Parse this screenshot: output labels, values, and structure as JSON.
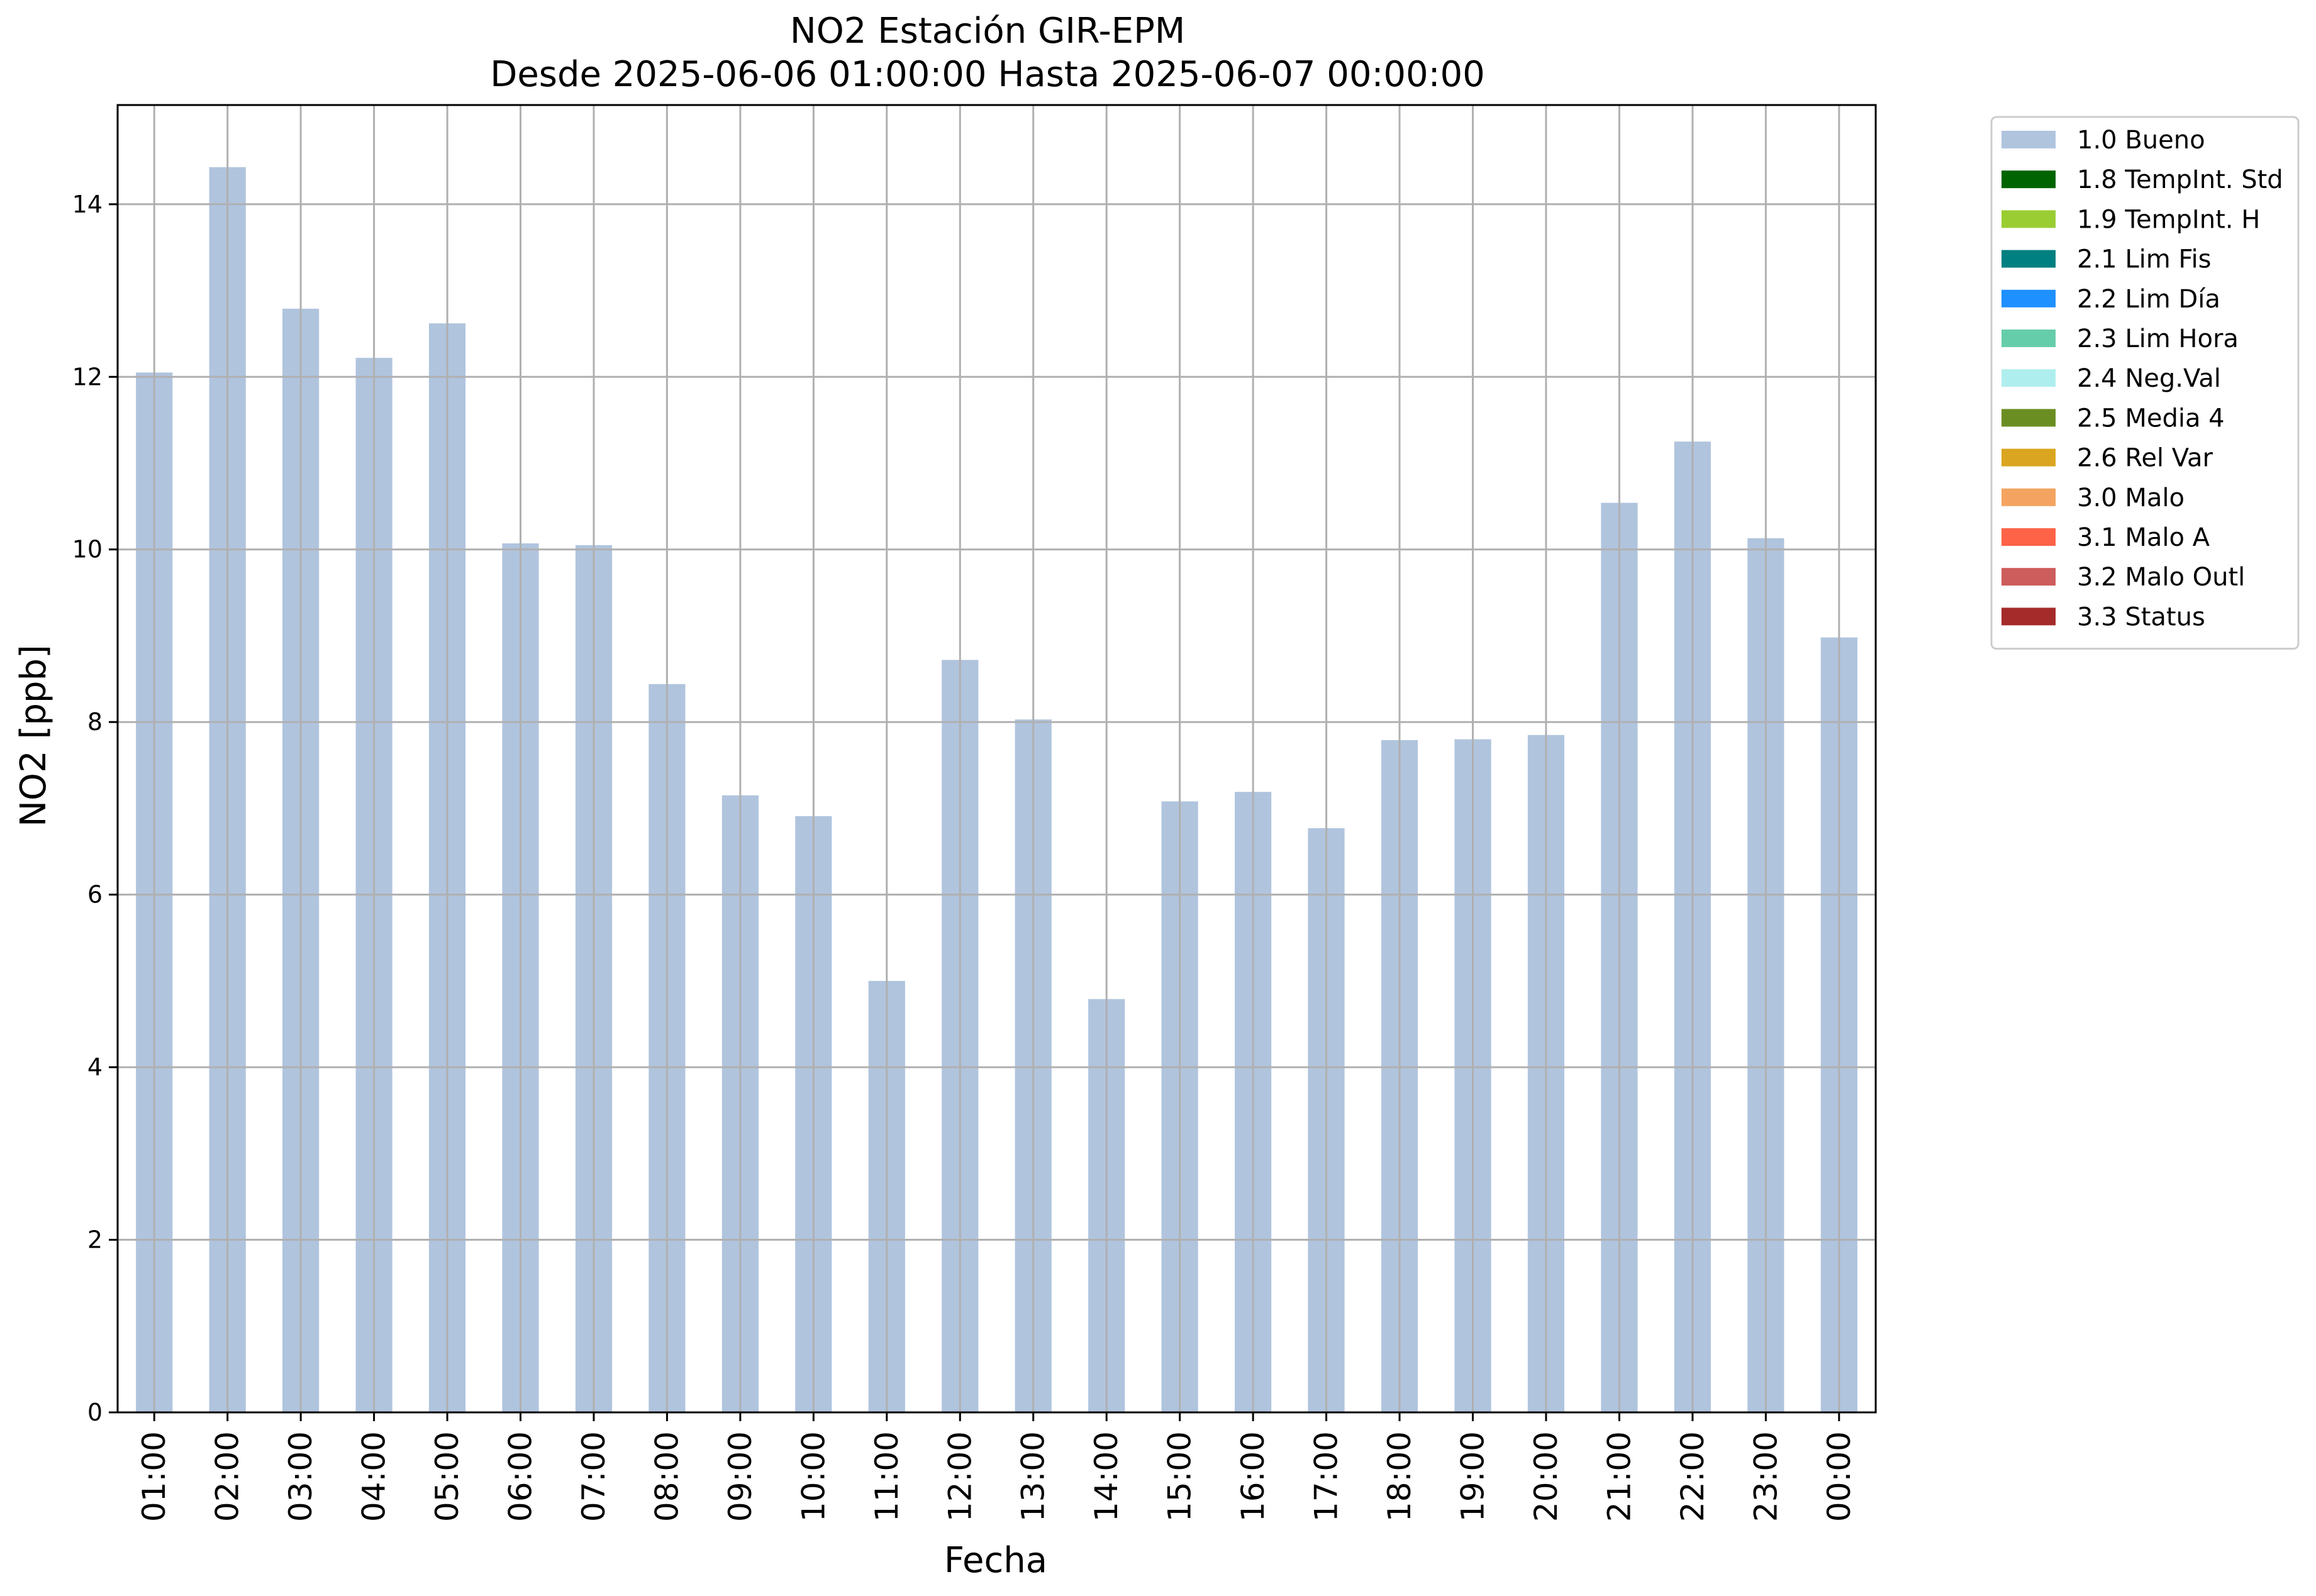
{
  "chart_data": {
    "type": "bar",
    "title": "NO2 Estación GIR-EPM",
    "subtitle": "Desde 2025-06-06 01:00:00 Hasta 2025-06-07 00:00:00",
    "xlabel": "Fecha",
    "ylabel": "NO2 [ppb]",
    "ylim": [
      0,
      15.15
    ],
    "yticks": [
      0,
      2,
      4,
      6,
      8,
      10,
      12,
      14
    ],
    "grid": true,
    "legend_position": "outside-top-right",
    "categories": [
      "01:00",
      "02:00",
      "03:00",
      "04:00",
      "05:00",
      "06:00",
      "07:00",
      "08:00",
      "09:00",
      "10:00",
      "11:00",
      "12:00",
      "13:00",
      "14:00",
      "15:00",
      "16:00",
      "17:00",
      "18:00",
      "19:00",
      "20:00",
      "21:00",
      "22:00",
      "23:00",
      "00:00"
    ],
    "series": [
      {
        "name": "1.0 Bueno",
        "color": "#b0c4de",
        "values": [
          12.05,
          14.43,
          12.79,
          12.22,
          12.62,
          10.07,
          10.05,
          8.44,
          7.15,
          6.91,
          5.0,
          8.72,
          8.03,
          4.79,
          7.08,
          7.19,
          6.77,
          7.79,
          7.8,
          7.85,
          10.54,
          11.25,
          10.13,
          8.98
        ]
      }
    ],
    "legend": [
      {
        "label": "1.0 Bueno",
        "color": "#b0c4de"
      },
      {
        "label": "1.8 TempInt. Std",
        "color": "#006400"
      },
      {
        "label": "1.9 TempInt. H",
        "color": "#9acd32"
      },
      {
        "label": "2.1 Lim Fis",
        "color": "#008080"
      },
      {
        "label": "2.2 Lim Día",
        "color": "#1e90ff"
      },
      {
        "label": "2.3 Lim Hora",
        "color": "#66cdaa"
      },
      {
        "label": "2.4 Neg.Val",
        "color": "#afeeee"
      },
      {
        "label": "2.5 Media 4",
        "color": "#6b8e23"
      },
      {
        "label": "2.6 Rel Var",
        "color": "#daa520"
      },
      {
        "label": "3.0 Malo",
        "color": "#f4a460"
      },
      {
        "label": "3.1 Malo A",
        "color": "#ff6347"
      },
      {
        "label": "3.2 Malo Outl",
        "color": "#cd5c5c"
      },
      {
        "label": "3.3 Status",
        "color": "#a52a2a"
      }
    ]
  }
}
